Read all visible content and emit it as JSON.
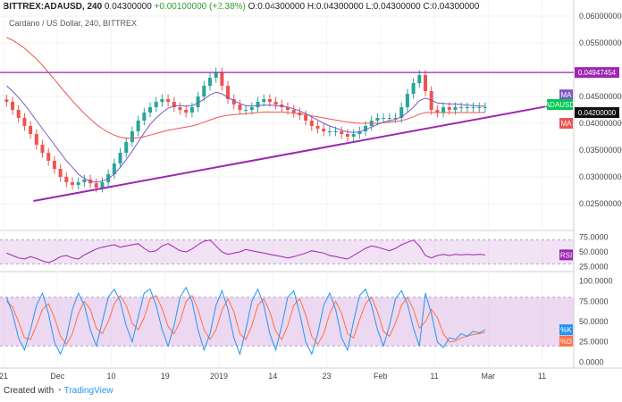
{
  "header": {
    "symbol": "BITTREX:ADAUSD, 240",
    "price": "0.04300000",
    "change": "+0.00100000 (+2.38%)",
    "o_label": "O:",
    "o": "0.04300000",
    "h_label": "H:",
    "h": "0.04300000",
    "l_label": "L:",
    "l": "0.04300000",
    "c_label": "C:",
    "c": "0.04300000"
  },
  "subtitle": "Cardano / US Dollar, 240, BITTREX",
  "footer": {
    "prefix": "Created with",
    "brand": "TradingView"
  },
  "colors": {
    "up": "#26a69a",
    "down": "#ef5350",
    "purple": "#9c27b0",
    "ma_fast": "#7e57c2",
    "ma_slow": "#ef5350",
    "rsi": "#9c27b0",
    "stoch_k": "#2196f3",
    "stoch_d": "#ff7043",
    "band": "#e1bee7",
    "green_tag": "#00c853"
  },
  "chart_data": [
    {
      "type": "candlestick",
      "x_ticks": [
        "21",
        "Dec",
        "10",
        "19",
        "2019",
        "14",
        "23",
        "Feb",
        "11",
        "Mar",
        "11"
      ],
      "x_tick_pos": [
        0,
        9,
        18,
        27,
        36,
        45,
        54,
        63,
        72,
        81,
        90
      ],
      "x_range": [
        0,
        95
      ],
      "ylim": [
        0.02,
        0.063
      ],
      "y_ticks": [
        "0.060000000",
        "0.055000000",
        "0.045000000",
        "0.040000000",
        "0.035000000",
        "0.030000000",
        "0.025000000"
      ],
      "y_tick_vals": [
        0.06,
        0.055,
        0.045,
        0.04,
        0.035,
        0.03,
        0.025
      ],
      "resistance": {
        "value": 0.04947454,
        "label": "0.04947454"
      },
      "trendline": {
        "x": [
          5,
          91
        ],
        "y": [
          0.0255,
          0.0432
        ]
      },
      "tags": [
        {
          "label": "MA",
          "value": 0.0453,
          "kind": "ma_fast"
        },
        {
          "label": "ADAUSD",
          "value": 0.0435,
          "kind": "price"
        },
        {
          "label": "0.04200000",
          "value": 0.042,
          "kind": "current"
        },
        {
          "label": "MA",
          "value": 0.04,
          "kind": "ma_slow"
        }
      ],
      "close": [
        0.044,
        0.0425,
        0.041,
        0.0395,
        0.038,
        0.036,
        0.0345,
        0.033,
        0.0315,
        0.03,
        0.029,
        0.0285,
        0.029,
        0.0295,
        0.0288,
        0.028,
        0.029,
        0.0305,
        0.0325,
        0.0345,
        0.0365,
        0.0385,
        0.0405,
        0.042,
        0.043,
        0.044,
        0.0445,
        0.044,
        0.043,
        0.0425,
        0.042,
        0.043,
        0.045,
        0.047,
        0.0485,
        0.0495,
        0.047,
        0.0445,
        0.0435,
        0.0425,
        0.0425,
        0.043,
        0.044,
        0.0445,
        0.044,
        0.0435,
        0.043,
        0.0425,
        0.042,
        0.0415,
        0.0405,
        0.0395,
        0.039,
        0.0385,
        0.0385,
        0.0385,
        0.038,
        0.0375,
        0.038,
        0.0385,
        0.0395,
        0.0405,
        0.041,
        0.041,
        0.041,
        0.041,
        0.043,
        0.0455,
        0.0475,
        0.049,
        0.046,
        0.0425,
        0.042,
        0.043,
        0.0425,
        0.043,
        0.043,
        0.043,
        0.043,
        0.043,
        0.043
      ],
      "ma_fast": [
        0.047,
        0.046,
        0.0448,
        0.0435,
        0.042,
        0.0405,
        0.039,
        0.0375,
        0.036,
        0.0345,
        0.033,
        0.0318,
        0.0305,
        0.0297,
        0.0292,
        0.029,
        0.0292,
        0.0297,
        0.0305,
        0.0318,
        0.0332,
        0.0348,
        0.0365,
        0.0382,
        0.0398,
        0.041,
        0.042,
        0.0428,
        0.0432,
        0.0433,
        0.0432,
        0.0433,
        0.0438,
        0.0445,
        0.0453,
        0.0458,
        0.0455,
        0.0448,
        0.0442,
        0.0437,
        0.0433,
        0.0432,
        0.0433,
        0.0434,
        0.0434,
        0.0433,
        0.0432,
        0.043,
        0.0427,
        0.0423,
        0.0418,
        0.0412,
        0.0406,
        0.04,
        0.0395,
        0.0391,
        0.0387,
        0.0384,
        0.0383,
        0.0384,
        0.0388,
        0.0393,
        0.0398,
        0.0402,
        0.0405,
        0.0407,
        0.0412,
        0.042,
        0.043,
        0.0442,
        0.0447,
        0.0443,
        0.0438,
        0.0437,
        0.0436,
        0.0436,
        0.0435,
        0.0434,
        0.0433,
        0.0432,
        0.0432
      ],
      "ma_slow": [
        0.056,
        0.0555,
        0.0548,
        0.054,
        0.053,
        0.052,
        0.0508,
        0.0495,
        0.0482,
        0.0468,
        0.0455,
        0.0442,
        0.043,
        0.0418,
        0.0408,
        0.0398,
        0.039,
        0.0383,
        0.0378,
        0.0374,
        0.0372,
        0.0372,
        0.0373,
        0.0375,
        0.0378,
        0.0381,
        0.0384,
        0.0387,
        0.0389,
        0.0391,
        0.0393,
        0.0395,
        0.0398,
        0.0402,
        0.0406,
        0.041,
        0.0413,
        0.0415,
        0.0416,
        0.0417,
        0.0418,
        0.0419,
        0.042,
        0.0421,
        0.0421,
        0.0421,
        0.0421,
        0.042,
        0.0419,
        0.0418,
        0.0416,
        0.0414,
        0.0412,
        0.041,
        0.0408,
        0.0406,
        0.0404,
        0.0402,
        0.0401,
        0.04,
        0.04,
        0.04,
        0.04,
        0.0401,
        0.0402,
        0.0403,
        0.0405,
        0.0408,
        0.0412,
        0.0417,
        0.042,
        0.042,
        0.042,
        0.042,
        0.042,
        0.042,
        0.042,
        0.042,
        0.042,
        0.042,
        0.042
      ]
    },
    {
      "type": "line",
      "tag": "RSI",
      "ylim": [
        20,
        80
      ],
      "y_ticks": [
        "75.0000",
        "50.0000",
        "25.0000"
      ],
      "y_tick_vals": [
        75,
        50,
        25
      ],
      "band": [
        30,
        70
      ],
      "values": [
        48,
        44,
        40,
        38,
        42,
        39,
        35,
        32,
        36,
        42,
        44,
        40,
        38,
        45,
        50,
        55,
        58,
        60,
        62,
        58,
        60,
        62,
        64,
        56,
        50,
        52,
        60,
        64,
        58,
        52,
        50,
        55,
        62,
        68,
        70,
        60,
        50,
        46,
        48,
        50,
        54,
        52,
        50,
        48,
        46,
        44,
        42,
        40,
        42,
        45,
        48,
        52,
        50,
        48,
        44,
        42,
        40,
        38,
        44,
        50,
        56,
        60,
        58,
        55,
        52,
        56,
        62,
        66,
        70,
        60,
        44,
        40,
        44,
        46,
        44,
        46,
        45,
        46,
        45,
        46,
        45
      ]
    },
    {
      "type": "line",
      "tag_k": "%K",
      "tag_d": "%D",
      "ylim": [
        -5,
        105
      ],
      "y_ticks": [
        "100.0000",
        "75.0000",
        "50.0000",
        "25.0000",
        "0.0000"
      ],
      "y_tick_vals": [
        100,
        75,
        50,
        25,
        0
      ],
      "band": [
        20,
        80
      ],
      "k": [
        80,
        60,
        30,
        15,
        40,
        70,
        85,
        60,
        25,
        10,
        30,
        65,
        85,
        70,
        40,
        20,
        50,
        80,
        90,
        75,
        45,
        25,
        55,
        85,
        90,
        70,
        40,
        20,
        45,
        80,
        92,
        75,
        40,
        15,
        35,
        70,
        88,
        65,
        30,
        10,
        40,
        75,
        90,
        70,
        35,
        15,
        45,
        80,
        88,
        60,
        25,
        10,
        35,
        70,
        85,
        65,
        30,
        15,
        50,
        82,
        90,
        70,
        40,
        20,
        45,
        78,
        88,
        72,
        42,
        20,
        85,
        60,
        25,
        18,
        30,
        28,
        35,
        32,
        38,
        36,
        40
      ],
      "d": [
        75,
        68,
        50,
        30,
        28,
        45,
        65,
        72,
        55,
        32,
        22,
        35,
        60,
        75,
        65,
        42,
        35,
        50,
        72,
        82,
        70,
        48,
        40,
        55,
        78,
        82,
        66,
        44,
        35,
        50,
        75,
        82,
        65,
        40,
        28,
        40,
        64,
        78,
        62,
        35,
        28,
        45,
        70,
        78,
        62,
        38,
        28,
        45,
        70,
        78,
        58,
        32,
        22,
        35,
        60,
        75,
        60,
        35,
        30,
        52,
        72,
        80,
        62,
        38,
        32,
        48,
        70,
        80,
        65,
        42,
        50,
        65,
        55,
        35,
        25,
        26,
        30,
        32,
        34,
        35,
        37
      ]
    }
  ]
}
